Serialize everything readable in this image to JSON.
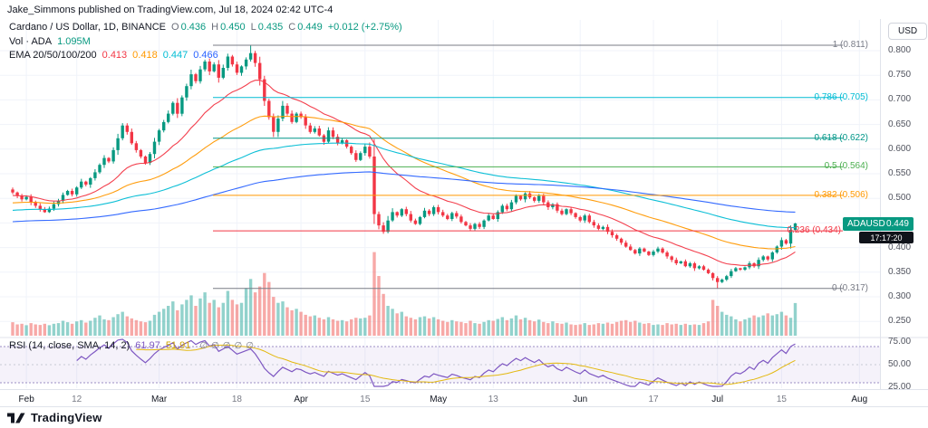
{
  "attribution": "Jake_Simmons published on TradingView.com, Jul 18, 2024 02:42 UTC-4",
  "header": {
    "symbol_title": "Cardano / US Dollar, 1D, BINANCE",
    "ohlc": [
      {
        "k": "O",
        "v": "0.436"
      },
      {
        "k": "H",
        "v": "0.450"
      },
      {
        "k": "L",
        "v": "0.435"
      },
      {
        "k": "C",
        "v": "0.449"
      }
    ],
    "change": "+0.012 (+2.75%)",
    "up_color": "#089981",
    "volume": {
      "label": "Vol · ADA",
      "value": "1.095M"
    },
    "ema": {
      "label": "EMA 20/50/100/200",
      "values": [
        {
          "v": "0.413",
          "color": "#f23645"
        },
        {
          "v": "0.418",
          "color": "#ff9800"
        },
        {
          "v": "0.447",
          "color": "#00bcd4"
        },
        {
          "v": "0.466",
          "color": "#2962ff"
        }
      ]
    }
  },
  "rsi_legend": {
    "label": "RSI (14, close, SMA, 14, 2)",
    "values": [
      {
        "v": "61.97",
        "color": "#7e57c2"
      },
      {
        "v": "51.91",
        "color": "#cfa600"
      }
    ],
    "empty_icon": "∅",
    "empty_count": 5
  },
  "price_axis": {
    "currency": "USD",
    "labels": [
      "0.800",
      "0.750",
      "0.700",
      "0.650",
      "0.600",
      "0.550",
      "0.500",
      "0.450",
      "0.400",
      "0.350",
      "0.300",
      "0.250"
    ]
  },
  "rsi_axis_labels": [
    "75.00",
    "50.00",
    "25.00"
  ],
  "price_badge": {
    "symbol": "ADAUSD",
    "price": "0.449",
    "countdown": "17:17:20",
    "bg": "#089981",
    "countdown_bg": "#10131a",
    "countdown_color": "#ffffff"
  },
  "footer": {
    "brand": "TradingView"
  },
  "chart_data": {
    "type": "candlestick",
    "title": "Cardano / US Dollar",
    "symbol": "ADAUSD",
    "exchange": "BINANCE",
    "interval": "1D",
    "last_candle": {
      "o": 0.436,
      "h": 0.45,
      "l": 0.435,
      "c": 0.449
    },
    "change": "+0.012 (+2.75%)",
    "y_range": [
      0.25,
      0.83
    ],
    "extreme_high": 0.811,
    "extreme_low": 0.317,
    "first_open": 0.518,
    "closes": [
      0.512,
      0.505,
      0.498,
      0.503,
      0.492,
      0.485,
      0.478,
      0.472,
      0.479,
      0.488,
      0.495,
      0.507,
      0.515,
      0.508,
      0.522,
      0.534,
      0.528,
      0.541,
      0.553,
      0.568,
      0.582,
      0.575,
      0.598,
      0.622,
      0.648,
      0.635,
      0.612,
      0.598,
      0.585,
      0.572,
      0.59,
      0.615,
      0.638,
      0.655,
      0.672,
      0.694,
      0.672,
      0.705,
      0.728,
      0.752,
      0.738,
      0.762,
      0.778,
      0.758,
      0.772,
      0.745,
      0.765,
      0.788,
      0.772,
      0.755,
      0.768,
      0.782,
      0.795,
      0.775,
      0.742,
      0.698,
      0.665,
      0.635,
      0.662,
      0.688,
      0.672,
      0.655,
      0.672,
      0.665,
      0.648,
      0.635,
      0.642,
      0.628,
      0.615,
      0.638,
      0.625,
      0.612,
      0.618,
      0.605,
      0.592,
      0.578,
      0.592,
      0.605,
      0.585,
      0.468,
      0.445,
      0.432,
      0.455,
      0.472,
      0.465,
      0.478,
      0.468,
      0.455,
      0.448,
      0.462,
      0.475,
      0.468,
      0.482,
      0.472,
      0.465,
      0.458,
      0.47,
      0.463,
      0.452,
      0.445,
      0.438,
      0.448,
      0.442,
      0.455,
      0.465,
      0.458,
      0.472,
      0.485,
      0.478,
      0.492,
      0.505,
      0.498,
      0.51,
      0.502,
      0.495,
      0.505,
      0.492,
      0.482,
      0.488,
      0.475,
      0.468,
      0.478,
      0.47,
      0.462,
      0.455,
      0.465,
      0.452,
      0.445,
      0.438,
      0.442,
      0.432,
      0.425,
      0.418,
      0.41,
      0.402,
      0.395,
      0.388,
      0.398,
      0.392,
      0.385,
      0.392,
      0.398,
      0.39,
      0.382,
      0.375,
      0.368,
      0.372,
      0.362,
      0.368,
      0.358,
      0.362,
      0.355,
      0.348,
      0.338,
      0.33,
      0.335,
      0.342,
      0.352,
      0.358,
      0.355,
      0.36,
      0.368,
      0.362,
      0.375,
      0.382,
      0.376,
      0.39,
      0.402,
      0.415,
      0.408,
      0.436,
      0.449
    ],
    "volumes_m": [
      0.45,
      0.38,
      0.4,
      0.35,
      0.42,
      0.38,
      0.36,
      0.4,
      0.35,
      0.4,
      0.42,
      0.5,
      0.45,
      0.4,
      0.48,
      0.52,
      0.44,
      0.5,
      0.6,
      0.68,
      0.55,
      0.52,
      0.62,
      0.72,
      0.8,
      0.65,
      0.58,
      0.52,
      0.48,
      0.45,
      0.5,
      0.7,
      0.8,
      0.9,
      1.0,
      1.15,
      0.85,
      1.05,
      1.2,
      1.35,
      1.0,
      1.25,
      1.45,
      1.1,
      1.2,
      0.95,
      1.1,
      1.5,
      1.2,
      1.05,
      1.1,
      1.6,
      1.9,
      1.45,
      1.65,
      2.1,
      1.8,
      1.3,
      1.1,
      1.15,
      0.95,
      0.85,
      0.9,
      0.8,
      0.7,
      0.65,
      0.68,
      0.6,
      0.55,
      0.62,
      0.55,
      0.5,
      0.52,
      0.48,
      0.55,
      0.6,
      0.58,
      0.6,
      0.68,
      2.8,
      2.0,
      1.4,
      1.0,
      0.9,
      0.75,
      0.8,
      0.65,
      0.6,
      0.55,
      0.62,
      0.65,
      0.58,
      0.62,
      0.55,
      0.5,
      0.46,
      0.52,
      0.48,
      0.46,
      0.42,
      0.5,
      0.42,
      0.4,
      0.46,
      0.52,
      0.5,
      0.56,
      0.62,
      0.52,
      0.58,
      0.68,
      0.55,
      0.6,
      0.52,
      0.48,
      0.54,
      0.46,
      0.42,
      0.48,
      0.42,
      0.4,
      0.44,
      0.38,
      0.36,
      0.38,
      0.42,
      0.36,
      0.38,
      0.42,
      0.4,
      0.44,
      0.4,
      0.46,
      0.5,
      0.52,
      0.46,
      0.5,
      0.44,
      0.4,
      0.42,
      0.36,
      0.38,
      0.36,
      0.42,
      0.38,
      0.4,
      0.36,
      0.4,
      0.36,
      0.38,
      0.36,
      0.42,
      0.48,
      1.2,
      1.0,
      0.8,
      0.7,
      0.65,
      0.55,
      0.48,
      0.55,
      0.6,
      0.68,
      0.62,
      0.68,
      0.75,
      0.68,
      0.72,
      0.8,
      0.68,
      0.6,
      1.095
    ],
    "candle_colors": {
      "up": "#089981",
      "down": "#f23645"
    },
    "volume_colors": {
      "up": "#26a69a",
      "down": "#ef5350"
    },
    "emas": [
      {
        "period": 20,
        "color": "#f23645",
        "seed": 0.505,
        "last": 0.413
      },
      {
        "period": 50,
        "color": "#ff9800",
        "seed": 0.49,
        "last": 0.418
      },
      {
        "period": 100,
        "color": "#00bcd4",
        "seed": 0.475,
        "last": 0.447
      },
      {
        "period": 200,
        "color": "#2962ff",
        "seed": 0.452,
        "last": 0.466
      }
    ],
    "fib_levels": [
      {
        "level": "1",
        "price": 0.811,
        "label": "1 (0.811)",
        "color": "#787b86"
      },
      {
        "level": "0.786",
        "price": 0.705,
        "label": "0.786 (0.705)",
        "color": "#00bcd4"
      },
      {
        "level": "0.618",
        "price": 0.622,
        "label": "0.618 (0.622)",
        "color": "#009688"
      },
      {
        "level": "0.5",
        "price": 0.564,
        "label": "0.5 (0.564)",
        "color": "#4caf50"
      },
      {
        "level": "0.382",
        "price": 0.506,
        "label": "0.382 (0.506)",
        "color": "#ff9800"
      },
      {
        "level": "0.236",
        "price": 0.434,
        "label": "0.236 (0.434)",
        "color": "#f23645"
      },
      {
        "level": "0",
        "price": 0.317,
        "label": "0 (0.317)",
        "color": "#787b86"
      }
    ],
    "rsi": {
      "period": 14,
      "sma": 14,
      "last": 61.97,
      "sma_last": 51.91,
      "band": [
        30,
        70
      ],
      "levels": [
        75,
        50,
        25
      ],
      "line_color": "#7e57c2",
      "sma_color": "#e3b80e",
      "band_fill": "rgba(126,87,194,0.08)"
    },
    "x_ticks": [
      {
        "d": 3,
        "label": "Feb",
        "major": true
      },
      {
        "d": 14,
        "label": "12"
      },
      {
        "d": 32,
        "label": "Mar",
        "major": true
      },
      {
        "d": 49,
        "label": "18"
      },
      {
        "d": 63,
        "label": "Apr",
        "major": true
      },
      {
        "d": 77,
        "label": "15"
      },
      {
        "d": 93,
        "label": "May",
        "major": true
      },
      {
        "d": 105,
        "label": "13"
      },
      {
        "d": 124,
        "label": "Jun",
        "major": true
      },
      {
        "d": 140,
        "label": "17"
      },
      {
        "d": 154,
        "label": "Jul",
        "major": true
      },
      {
        "d": 168,
        "label": "15"
      },
      {
        "d": 185,
        "label": "Aug",
        "major": true
      }
    ]
  }
}
